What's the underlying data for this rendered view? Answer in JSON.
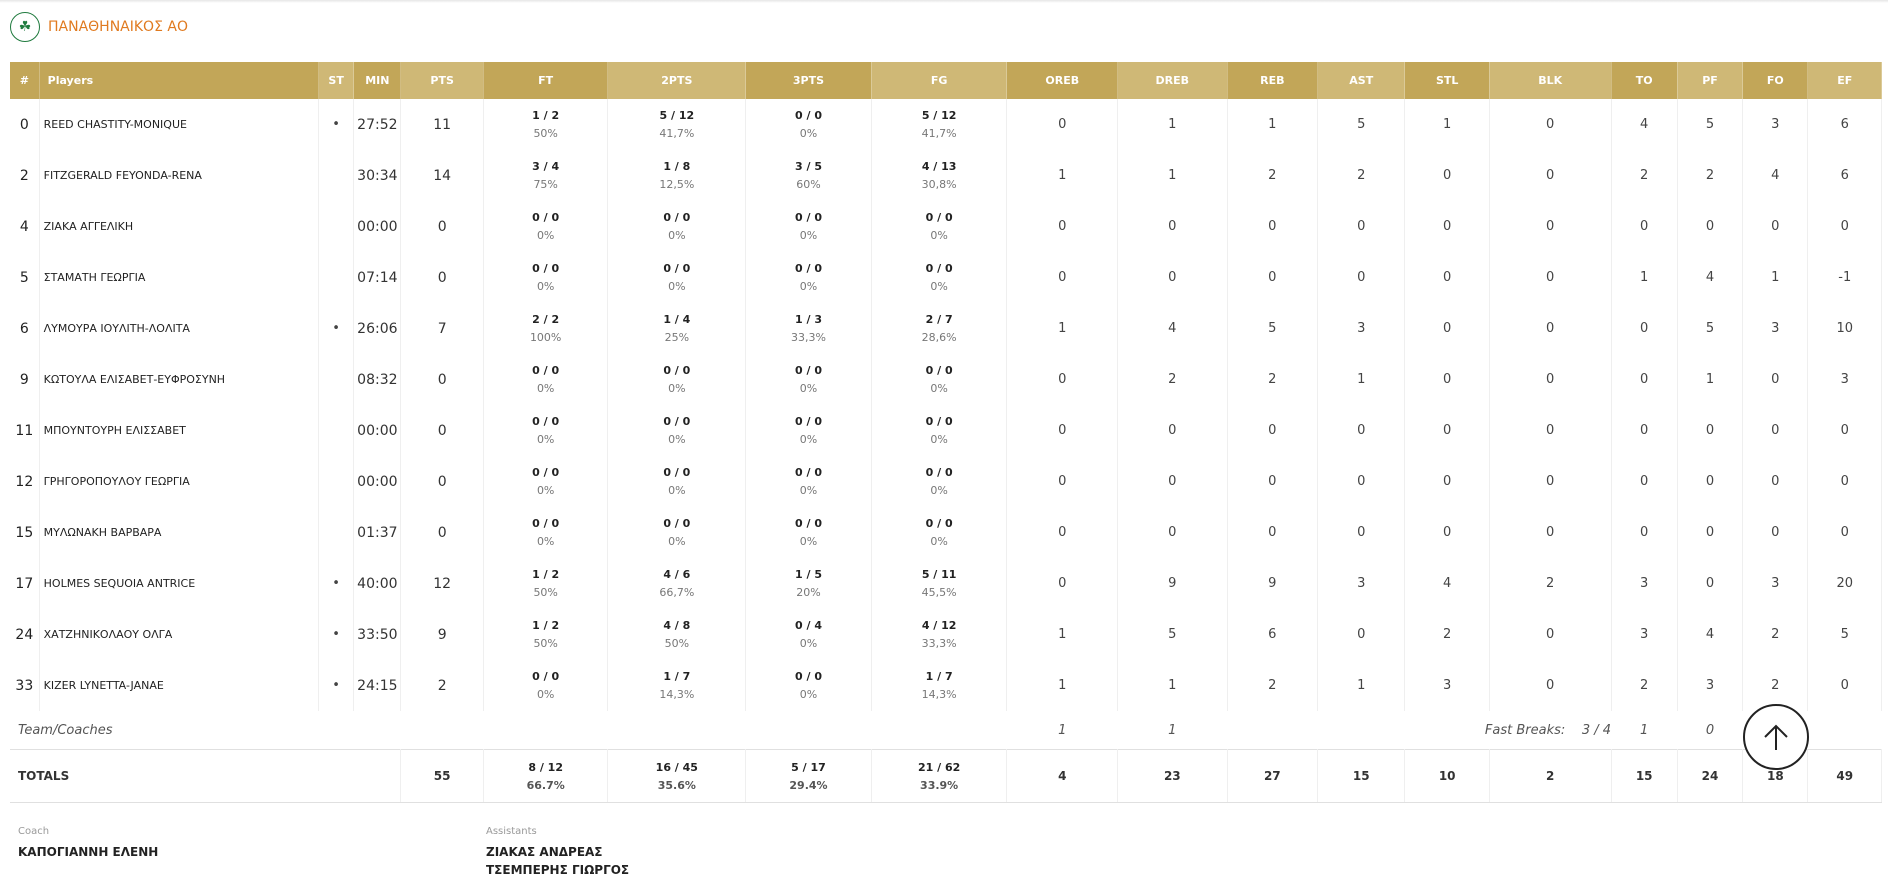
{
  "team": {
    "name": "ΠΑΝΑΘΗΝΑΙΚΟΣ ΑΟ",
    "logo_icon": "clover-logo-icon"
  },
  "headers": [
    "#",
    "Players",
    "ST",
    "MIN",
    "PTS",
    "FT",
    "2PTS",
    "3PTS",
    "FG",
    "OREB",
    "DREB",
    "REB",
    "AST",
    "STL",
    "BLK",
    "TO",
    "PF",
    "FO",
    "EF"
  ],
  "players": [
    {
      "num": "0",
      "name": "REED CHASTITY-MONIQUE",
      "st": "•",
      "min": "27:52",
      "pts": "11",
      "ft": {
        "m": "1 / 2",
        "p": "50%"
      },
      "p2": {
        "m": "5 / 12",
        "p": "41,7%"
      },
      "p3": {
        "m": "0 / 0",
        "p": "0%"
      },
      "fg": {
        "m": "5 / 12",
        "p": "41,7%"
      },
      "oreb": "0",
      "dreb": "1",
      "reb": "1",
      "ast": "5",
      "stl": "1",
      "blk": "0",
      "to": "4",
      "pf": "5",
      "fo": "3",
      "ef": "6"
    },
    {
      "num": "2",
      "name": "FITZGERALD FEYONDA-RENA",
      "st": "",
      "min": "30:34",
      "pts": "14",
      "ft": {
        "m": "3 / 4",
        "p": "75%"
      },
      "p2": {
        "m": "1 / 8",
        "p": "12,5%"
      },
      "p3": {
        "m": "3 / 5",
        "p": "60%"
      },
      "fg": {
        "m": "4 / 13",
        "p": "30,8%"
      },
      "oreb": "1",
      "dreb": "1",
      "reb": "2",
      "ast": "2",
      "stl": "0",
      "blk": "0",
      "to": "2",
      "pf": "2",
      "fo": "4",
      "ef": "6"
    },
    {
      "num": "4",
      "name": "ΖΙΑΚΑ ΑΓΓΕΛΙΚΗ",
      "st": "",
      "min": "00:00",
      "pts": "0",
      "ft": {
        "m": "0 / 0",
        "p": "0%"
      },
      "p2": {
        "m": "0 / 0",
        "p": "0%"
      },
      "p3": {
        "m": "0 / 0",
        "p": "0%"
      },
      "fg": {
        "m": "0 / 0",
        "p": "0%"
      },
      "oreb": "0",
      "dreb": "0",
      "reb": "0",
      "ast": "0",
      "stl": "0",
      "blk": "0",
      "to": "0",
      "pf": "0",
      "fo": "0",
      "ef": "0"
    },
    {
      "num": "5",
      "name": "ΣΤΑΜΑΤΗ ΓΕΩΡΓΙΑ",
      "st": "",
      "min": "07:14",
      "pts": "0",
      "ft": {
        "m": "0 / 0",
        "p": "0%"
      },
      "p2": {
        "m": "0 / 0",
        "p": "0%"
      },
      "p3": {
        "m": "0 / 0",
        "p": "0%"
      },
      "fg": {
        "m": "0 / 0",
        "p": "0%"
      },
      "oreb": "0",
      "dreb": "0",
      "reb": "0",
      "ast": "0",
      "stl": "0",
      "blk": "0",
      "to": "1",
      "pf": "4",
      "fo": "1",
      "ef": "-1"
    },
    {
      "num": "6",
      "name": "ΛΥΜΟΥΡΑ ΙΟΥΛΙΤΗ-ΛΟΛΙΤΑ",
      "st": "•",
      "min": "26:06",
      "pts": "7",
      "ft": {
        "m": "2 / 2",
        "p": "100%"
      },
      "p2": {
        "m": "1 / 4",
        "p": "25%"
      },
      "p3": {
        "m": "1 / 3",
        "p": "33,3%"
      },
      "fg": {
        "m": "2 / 7",
        "p": "28,6%"
      },
      "oreb": "1",
      "dreb": "4",
      "reb": "5",
      "ast": "3",
      "stl": "0",
      "blk": "0",
      "to": "0",
      "pf": "5",
      "fo": "3",
      "ef": "10"
    },
    {
      "num": "9",
      "name": "ΚΩΤΟΥΛΑ ΕΛΙΣΑΒΕΤ-ΕΥΦΡΟΣΥΝΗ",
      "st": "",
      "min": "08:32",
      "pts": "0",
      "ft": {
        "m": "0 / 0",
        "p": "0%"
      },
      "p2": {
        "m": "0 / 0",
        "p": "0%"
      },
      "p3": {
        "m": "0 / 0",
        "p": "0%"
      },
      "fg": {
        "m": "0 / 0",
        "p": "0%"
      },
      "oreb": "0",
      "dreb": "2",
      "reb": "2",
      "ast": "1",
      "stl": "0",
      "blk": "0",
      "to": "0",
      "pf": "1",
      "fo": "0",
      "ef": "3"
    },
    {
      "num": "11",
      "name": "ΜΠΟΥΝΤΟΥΡΗ ΕΛΙΣΣΑΒΕΤ",
      "st": "",
      "min": "00:00",
      "pts": "0",
      "ft": {
        "m": "0 / 0",
        "p": "0%"
      },
      "p2": {
        "m": "0 / 0",
        "p": "0%"
      },
      "p3": {
        "m": "0 / 0",
        "p": "0%"
      },
      "fg": {
        "m": "0 / 0",
        "p": "0%"
      },
      "oreb": "0",
      "dreb": "0",
      "reb": "0",
      "ast": "0",
      "stl": "0",
      "blk": "0",
      "to": "0",
      "pf": "0",
      "fo": "0",
      "ef": "0"
    },
    {
      "num": "12",
      "name": "ΓΡΗΓΟΡΟΠΟΥΛΟΥ ΓΕΩΡΓΙΑ",
      "st": "",
      "min": "00:00",
      "pts": "0",
      "ft": {
        "m": "0 / 0",
        "p": "0%"
      },
      "p2": {
        "m": "0 / 0",
        "p": "0%"
      },
      "p3": {
        "m": "0 / 0",
        "p": "0%"
      },
      "fg": {
        "m": "0 / 0",
        "p": "0%"
      },
      "oreb": "0",
      "dreb": "0",
      "reb": "0",
      "ast": "0",
      "stl": "0",
      "blk": "0",
      "to": "0",
      "pf": "0",
      "fo": "0",
      "ef": "0"
    },
    {
      "num": "15",
      "name": "ΜΥΛΩΝΑΚΗ ΒΑΡΒΑΡΑ",
      "st": "",
      "min": "01:37",
      "pts": "0",
      "ft": {
        "m": "0 / 0",
        "p": "0%"
      },
      "p2": {
        "m": "0 / 0",
        "p": "0%"
      },
      "p3": {
        "m": "0 / 0",
        "p": "0%"
      },
      "fg": {
        "m": "0 / 0",
        "p": "0%"
      },
      "oreb": "0",
      "dreb": "0",
      "reb": "0",
      "ast": "0",
      "stl": "0",
      "blk": "0",
      "to": "0",
      "pf": "0",
      "fo": "0",
      "ef": "0"
    },
    {
      "num": "17",
      "name": "HOLMES SEQUOIA ANTRICE",
      "st": "•",
      "min": "40:00",
      "pts": "12",
      "ft": {
        "m": "1 / 2",
        "p": "50%"
      },
      "p2": {
        "m": "4 / 6",
        "p": "66,7%"
      },
      "p3": {
        "m": "1 / 5",
        "p": "20%"
      },
      "fg": {
        "m": "5 / 11",
        "p": "45,5%"
      },
      "oreb": "0",
      "dreb": "9",
      "reb": "9",
      "ast": "3",
      "stl": "4",
      "blk": "2",
      "to": "3",
      "pf": "0",
      "fo": "3",
      "ef": "20"
    },
    {
      "num": "24",
      "name": "ΧΑΤΖΗΝΙΚΟΛΑΟΥ ΟΛΓΑ",
      "st": "•",
      "min": "33:50",
      "pts": "9",
      "ft": {
        "m": "1 / 2",
        "p": "50%"
      },
      "p2": {
        "m": "4 / 8",
        "p": "50%"
      },
      "p3": {
        "m": "0 / 4",
        "p": "0%"
      },
      "fg": {
        "m": "4 / 12",
        "p": "33,3%"
      },
      "oreb": "1",
      "dreb": "5",
      "reb": "6",
      "ast": "0",
      "stl": "2",
      "blk": "0",
      "to": "3",
      "pf": "4",
      "fo": "2",
      "ef": "5"
    },
    {
      "num": "33",
      "name": "KIZER LYNETTA-JANAE",
      "st": "•",
      "min": "24:15",
      "pts": "2",
      "ft": {
        "m": "0 / 0",
        "p": "0%"
      },
      "p2": {
        "m": "1 / 7",
        "p": "14,3%"
      },
      "p3": {
        "m": "0 / 0",
        "p": "0%"
      },
      "fg": {
        "m": "1 / 7",
        "p": "14,3%"
      },
      "oreb": "1",
      "dreb": "1",
      "reb": "2",
      "ast": "1",
      "stl": "3",
      "blk": "0",
      "to": "2",
      "pf": "3",
      "fo": "2",
      "ef": "0"
    }
  ],
  "team_row": {
    "label": "Team/Coaches",
    "oreb": "1",
    "dreb": "1",
    "fast_breaks_label": "Fast Breaks:",
    "fast_breaks_value": "3 / 4",
    "to": "1",
    "pf": "0"
  },
  "totals": {
    "label": "TOTALS",
    "pts": "55",
    "ft": {
      "m": "8 / 12",
      "p": "66.7%"
    },
    "p2": {
      "m": "16 / 45",
      "p": "35.6%"
    },
    "p3": {
      "m": "5 / 17",
      "p": "29.4%"
    },
    "fg": {
      "m": "21 / 62",
      "p": "33.9%"
    },
    "oreb": "4",
    "dreb": "23",
    "reb": "27",
    "ast": "15",
    "stl": "10",
    "blk": "2",
    "to": "15",
    "pf": "24",
    "fo": "18",
    "ef": "49"
  },
  "coach": {
    "label": "Coach",
    "name": "ΚΑΠΟΓΙΑΝΝΗ ΕΛΕΝΗ"
  },
  "assistants": {
    "label": "Assistants",
    "names": [
      "ΖΙΑΚΑΣ ΑΝΔΡΕΑΣ",
      "ΤΣΕΜΠΕΡΗΣ ΓΙΩΡΓΟΣ"
    ]
  },
  "scroll_top_icon": "arrow-up-icon",
  "colors": {
    "header_gold": "#c2a658",
    "header_gold_alt": "#cfb876",
    "team_orange": "#e07a1f"
  }
}
